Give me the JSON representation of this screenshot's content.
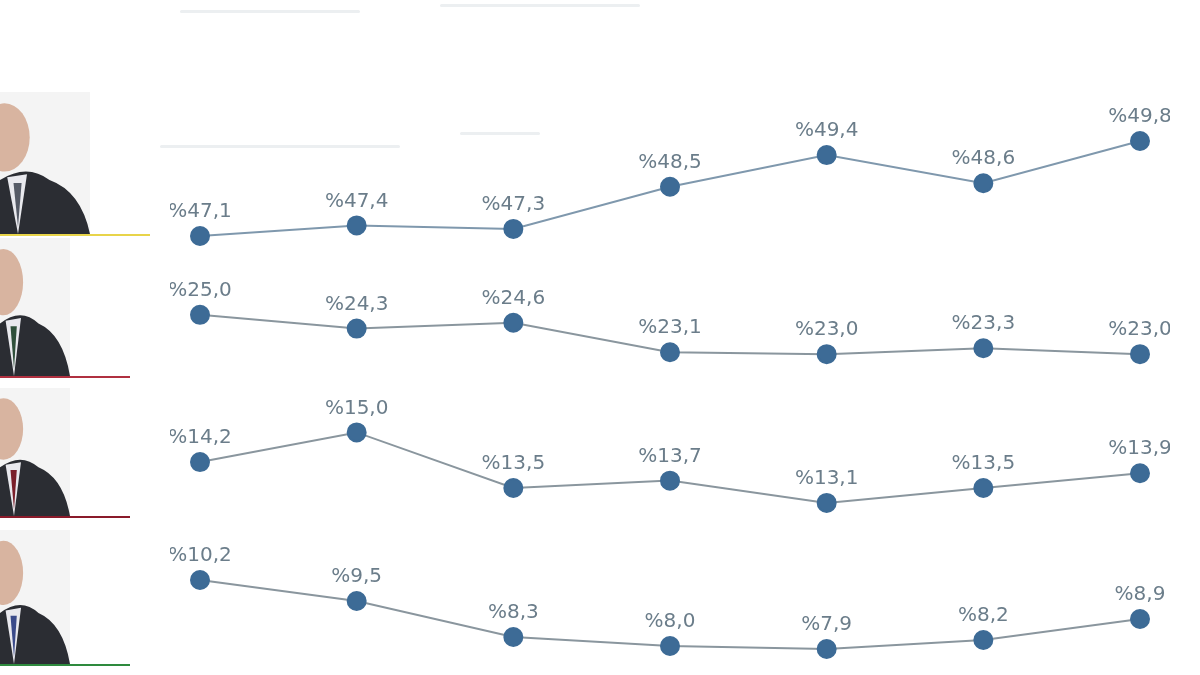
{
  "chart_data": [
    {
      "type": "line",
      "categories": [
        null,
        null,
        null,
        null,
        null,
        null,
        null
      ],
      "values": [
        47.1,
        47.4,
        47.3,
        48.5,
        49.4,
        48.6,
        49.8
      ],
      "value_labels": [
        "%47,1",
        "%47,4",
        "%47,3",
        "%48,5",
        "%49,4",
        "%48,6",
        "%49,8"
      ],
      "color": "#3d6b96",
      "marker": "circle",
      "ylim": [
        46.9,
        50.0
      ],
      "grid": false,
      "tick_labels": false,
      "data_labels": true
    },
    {
      "type": "line",
      "categories": [
        null,
        null,
        null,
        null,
        null,
        null,
        null
      ],
      "values": [
        25.0,
        24.3,
        24.6,
        23.1,
        23.0,
        23.3,
        23.0
      ],
      "value_labels": [
        "%25,0",
        "%24,3",
        "%24,6",
        "%23,1",
        "%23,0",
        "%23,3",
        "%23,0"
      ],
      "color": "#3d6b96",
      "marker": "circle",
      "ylim": [
        22.5,
        25.5
      ],
      "grid": false,
      "tick_labels": false,
      "data_labels": true
    },
    {
      "type": "line",
      "categories": [
        null,
        null,
        null,
        null,
        null,
        null,
        null
      ],
      "values": [
        14.2,
        15.0,
        13.5,
        13.7,
        13.1,
        13.5,
        13.9
      ],
      "value_labels": [
        "%14,2",
        "%15,0",
        "%13,5",
        "%13,7",
        "%13,1",
        "%13,5",
        "%13,9"
      ],
      "color": "#3d6b96",
      "marker": "circle",
      "ylim": [
        12.8,
        15.2
      ],
      "grid": false,
      "tick_labels": false,
      "data_labels": true
    },
    {
      "type": "line",
      "categories": [
        null,
        null,
        null,
        null,
        null,
        null,
        null
      ],
      "values": [
        10.2,
        9.5,
        8.3,
        8.0,
        7.9,
        8.2,
        8.9
      ],
      "value_labels": [
        "%10,2",
        "%9,5",
        "%8,3",
        "%8,0",
        "%7,9",
        "%8,2",
        "%8,9"
      ],
      "color": "#3d6b96",
      "marker": "circle",
      "ylim": [
        7.6,
        10.4
      ],
      "grid": false,
      "tick_labels": false,
      "data_labels": true
    }
  ]
}
